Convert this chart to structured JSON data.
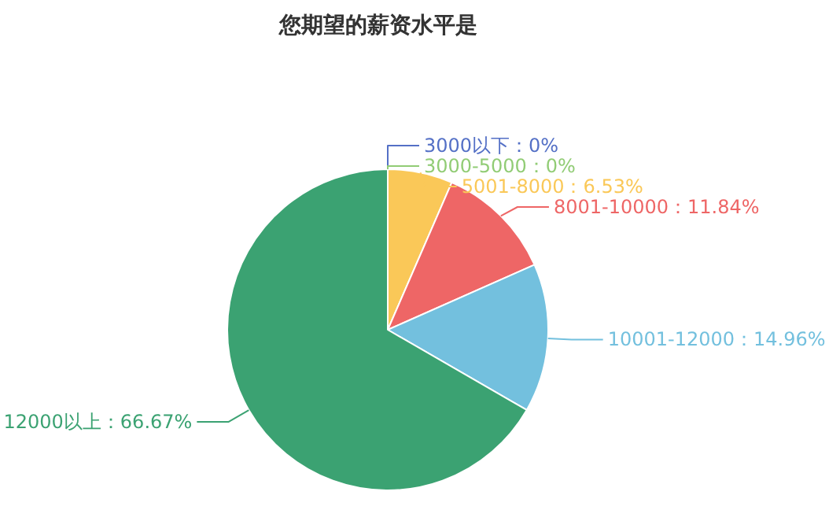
{
  "chart_data": {
    "type": "pie",
    "title": "您期望的薪资水平是",
    "categories": [
      "3000以下",
      "3000-5000",
      "5001-8000",
      "8001-10000",
      "10001-12000",
      "12000以上"
    ],
    "values": [
      0,
      0,
      6.53,
      11.84,
      14.96,
      66.67
    ],
    "value_labels": [
      "0%",
      "0%",
      "6.53%",
      "11.84%",
      "14.96%",
      "66.67%"
    ],
    "colors": [
      "#5470c6",
      "#91cc75",
      "#fac858",
      "#ee6666",
      "#73c0de",
      "#3ba272"
    ]
  }
}
